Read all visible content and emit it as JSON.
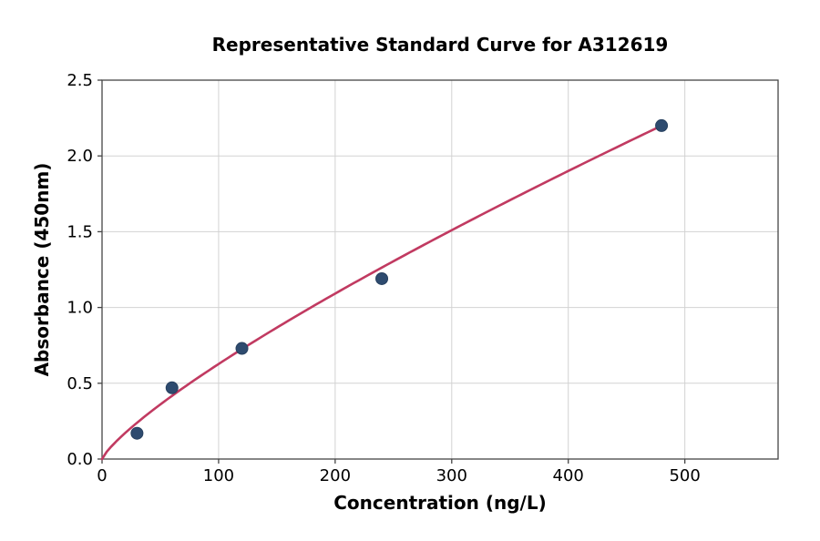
{
  "chart_data": {
    "type": "scatter",
    "title": "Representative Standard Curve for A312619",
    "xlabel": "Concentration (ng/L)",
    "ylabel": "Absorbance (450nm)",
    "xlim": [
      0,
      580
    ],
    "ylim": [
      0,
      2.5
    ],
    "xticks": [
      0,
      100,
      200,
      300,
      400,
      500
    ],
    "yticks": [
      0.0,
      0.5,
      1.0,
      1.5,
      2.0,
      2.5
    ],
    "grid": true,
    "legend": "none",
    "points": [
      {
        "x": 30,
        "y": 0.17
      },
      {
        "x": 60,
        "y": 0.47
      },
      {
        "x": 120,
        "y": 0.73
      },
      {
        "x": 240,
        "y": 1.19
      },
      {
        "x": 480,
        "y": 2.2
      }
    ],
    "fit_curve": {
      "model": "power",
      "formula": "y = a * x^b",
      "a": 0.01575,
      "b": 0.8,
      "x_start": 0,
      "x_end": 480
    },
    "colors": {
      "marker": "#2e4b6f",
      "marker_edge": "#27405f",
      "curve": "#c13a61",
      "grid": "#d2d2d2",
      "spine": "#454545",
      "text": "#000000",
      "background": "#ffffff"
    }
  }
}
